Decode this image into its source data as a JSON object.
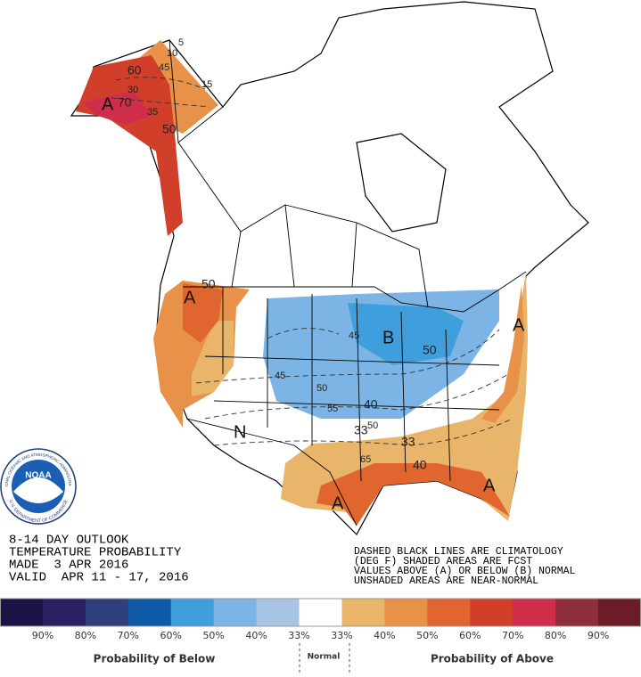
{
  "outlook": {
    "lines": [
      "8-14 DAY OUTLOOK",
      "TEMPERATURE PROBABILITY",
      "MADE  3 APR 2016",
      "VALID  APR 11 - 17, 2016"
    ]
  },
  "notes": [
    "DASHED BLACK LINES ARE CLIMATOLOGY",
    "(DEG F) SHADED AREAS ARE FCST",
    "VALUES ABOVE (A) OR BELOW (B) NORMAL",
    "UNSHADED AREAS ARE NEAR-NORMAL"
  ],
  "logo": {
    "name": "NOAA",
    "ring_top": "NATIONAL OCEANIC AND ATMOSPHERIC ADMINISTRATION",
    "ring_bottom": "U.S. DEPARTMENT OF COMMERCE"
  },
  "map": {
    "labels": [
      "60",
      "45",
      "5",
      "10",
      "30",
      "A",
      "70",
      "35",
      "50",
      "50",
      "A",
      "45",
      "B",
      "50",
      "45",
      "50",
      "55",
      "40",
      "33",
      "50",
      "N",
      "33",
      "65",
      "40",
      "A",
      "A",
      "A",
      "15"
    ]
  },
  "legend": {
    "colors": [
      "#1b1447",
      "#2b1f62",
      "#2e3f7c",
      "#0f5aa6",
      "#3e9fdc",
      "#7cb5e5",
      "#a7c4e5",
      "#ffffff",
      "#e8b56a",
      "#e89148",
      "#e0652f",
      "#d13e2a",
      "#d02d4a",
      "#8e2f3a",
      "#6b1c24"
    ],
    "labels": [
      "90%",
      "80%",
      "70%",
      "60%",
      "50%",
      "40%",
      "33%",
      "33%",
      "40%",
      "50%",
      "60%",
      "70%",
      "80%",
      "90%"
    ],
    "below": "Probability of Below",
    "normal": "Normal",
    "above": "Probability of Above"
  }
}
